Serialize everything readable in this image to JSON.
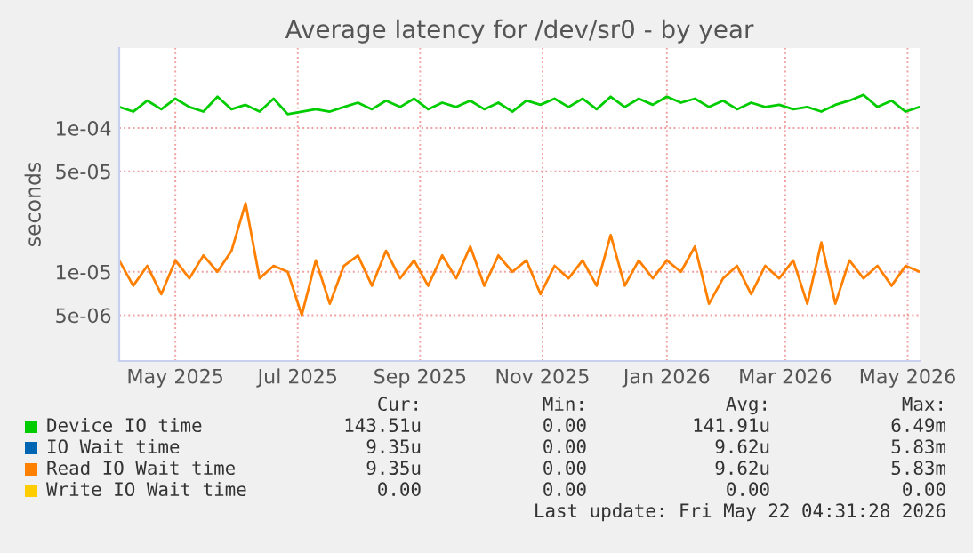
{
  "chart_data": {
    "type": "line",
    "title": "Average latency for /dev/sr0 - by year",
    "ylabel": "seconds",
    "x": [
      "2025-04-18",
      "2025-04-25",
      "2025-05-02",
      "2025-05-09",
      "2025-05-16",
      "2025-05-23",
      "2025-05-30",
      "2025-06-06",
      "2025-06-13",
      "2025-06-20",
      "2025-06-27",
      "2025-07-04",
      "2025-07-11",
      "2025-07-18",
      "2025-07-25",
      "2025-08-01",
      "2025-08-08",
      "2025-08-15",
      "2025-08-22",
      "2025-08-29",
      "2025-09-05",
      "2025-09-12",
      "2025-09-19",
      "2025-09-26",
      "2025-10-03",
      "2025-10-10",
      "2025-10-17",
      "2025-10-24",
      "2025-10-31",
      "2025-11-07",
      "2025-11-14",
      "2025-11-21",
      "2025-11-28",
      "2025-12-05",
      "2025-12-12",
      "2025-12-19",
      "2025-12-26",
      "2026-01-02",
      "2026-01-09",
      "2026-01-16",
      "2026-01-23",
      "2026-01-30",
      "2026-02-06",
      "2026-02-13",
      "2026-02-20",
      "2026-02-27",
      "2026-03-06",
      "2026-03-13",
      "2026-03-20",
      "2026-03-27",
      "2026-04-03",
      "2026-04-10",
      "2026-04-17",
      "2026-04-24",
      "2026-05-01",
      "2026-05-08",
      "2026-05-15",
      "2026-05-22"
    ],
    "series": [
      {
        "name": "Device IO time",
        "color": "#00cc00",
        "values": [
          0.00014,
          0.00013,
          0.000155,
          0.000135,
          0.00016,
          0.00014,
          0.00013,
          0.000165,
          0.000135,
          0.000145,
          0.00013,
          0.00016,
          0.000125,
          0.00013,
          0.000135,
          0.00013,
          0.00014,
          0.00015,
          0.000135,
          0.000155,
          0.00014,
          0.00016,
          0.000135,
          0.00015,
          0.00014,
          0.000155,
          0.000135,
          0.00015,
          0.00013,
          0.000155,
          0.000145,
          0.00016,
          0.00014,
          0.00016,
          0.000135,
          0.000165,
          0.00014,
          0.00016,
          0.000145,
          0.000165,
          0.00015,
          0.00016,
          0.00014,
          0.000155,
          0.000135,
          0.00015,
          0.00014,
          0.000145,
          0.000135,
          0.00014,
          0.00013,
          0.000145,
          0.000155,
          0.00017,
          0.00014,
          0.000155,
          0.00013,
          0.00014
        ]
      },
      {
        "name": "IO Wait time",
        "color": "#0066b3",
        "values": [
          null,
          null,
          null,
          null,
          null,
          null,
          null,
          null,
          null,
          null,
          null,
          null,
          null,
          null,
          null,
          null,
          null,
          null,
          null,
          null,
          null,
          null,
          null,
          null,
          null,
          null,
          null,
          null,
          null,
          null,
          null,
          null,
          null,
          null,
          null,
          null,
          null,
          null,
          null,
          null,
          null,
          null,
          null,
          null,
          null,
          null,
          null,
          null,
          null,
          null,
          null,
          null,
          null,
          null,
          null,
          null,
          null,
          null
        ]
      },
      {
        "name": "Read IO Wait time",
        "color": "#ff8000",
        "values": [
          1.2e-05,
          8e-06,
          1.1e-05,
          7e-06,
          1.2e-05,
          9e-06,
          1.3e-05,
          1e-05,
          1.4e-05,
          3e-05,
          9e-06,
          1.1e-05,
          1e-05,
          5e-06,
          1.2e-05,
          6e-06,
          1.1e-05,
          1.3e-05,
          8e-06,
          1.4e-05,
          9e-06,
          1.2e-05,
          8e-06,
          1.3e-05,
          9e-06,
          1.5e-05,
          8e-06,
          1.3e-05,
          1e-05,
          1.2e-05,
          7e-06,
          1.1e-05,
          9e-06,
          1.2e-05,
          8e-06,
          1.8e-05,
          8e-06,
          1.2e-05,
          9e-06,
          1.2e-05,
          1e-05,
          1.5e-05,
          6e-06,
          9e-06,
          1.1e-05,
          7e-06,
          1.1e-05,
          9e-06,
          1.2e-05,
          6e-06,
          1.6e-05,
          6e-06,
          1.2e-05,
          9e-06,
          1.1e-05,
          8e-06,
          1.1e-05,
          1e-05
        ]
      },
      {
        "name": "Write IO Wait time",
        "color": "#ffcc00",
        "values": [
          null,
          null,
          null,
          null,
          null,
          null,
          null,
          null,
          null,
          null,
          null,
          null,
          null,
          null,
          null,
          null,
          null,
          null,
          null,
          null,
          null,
          null,
          null,
          null,
          null,
          null,
          null,
          null,
          null,
          null,
          null,
          null,
          null,
          null,
          null,
          null,
          null,
          null,
          null,
          null,
          null,
          null,
          null,
          null,
          null,
          null,
          null,
          null,
          null,
          null,
          null,
          null,
          null,
          null,
          null,
          null,
          null,
          null
        ]
      }
    ],
    "log": true,
    "xlim": [
      "2025-04-18",
      "2026-05-22"
    ],
    "xticks": [
      {
        "value": "2025-05-16",
        "label": "May 2025"
      },
      {
        "value": "2025-07-16",
        "label": "Jul 2025"
      },
      {
        "value": "2025-09-15",
        "label": "Sep 2025"
      },
      {
        "value": "2025-11-15",
        "label": "Nov 2025"
      },
      {
        "value": "2026-01-16",
        "label": "Jan 2026"
      },
      {
        "value": "2026-03-16",
        "label": "Mar 2026"
      },
      {
        "value": "2026-05-16",
        "label": "May 2026"
      }
    ],
    "ylim": [
      2.4e-06,
      0.00036
    ],
    "yticks": [
      {
        "value": 5e-06,
        "label": "5e-06"
      },
      {
        "value": 1e-05,
        "label": "1e-05"
      },
      {
        "value": 5e-05,
        "label": "5e-05"
      },
      {
        "value": 0.0001,
        "label": "1e-04"
      }
    ],
    "grid": true,
    "legend": "bottom",
    "annotations": [
      "Cur:",
      "Min:",
      "Avg:",
      "Max:",
      "143.51u",
      "0.00",
      "141.91u",
      "6.49m",
      "9.35u",
      "0.00",
      "9.62u",
      "5.83m",
      "9.35u",
      "0.00",
      "9.62u",
      "5.83m",
      "0.00",
      "0.00",
      "0.00",
      "0.00",
      "Last update: Fri May 22 04:31:28 2026"
    ]
  }
}
